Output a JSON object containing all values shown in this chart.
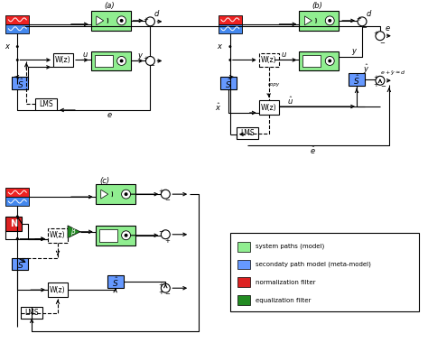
{
  "bg_color": "#ffffff",
  "light_green": "#90EE90",
  "blue": "#6699FF",
  "red": "#DD2222",
  "dark_green": "#228B22",
  "signal_red": "#EE2222",
  "signal_blue": "#4488EE",
  "labels": {
    "a": "(a)",
    "b": "(b)",
    "c": "(c)"
  },
  "legend_items": [
    {
      "color": "#90EE90",
      "label": "system paths (model)"
    },
    {
      "color": "#6699FF",
      "label": "secondaty path model (meta-model)"
    },
    {
      "color": "#DD2222",
      "label": "normalization filter"
    },
    {
      "color": "#228B22",
      "label": "equalization filter"
    }
  ]
}
